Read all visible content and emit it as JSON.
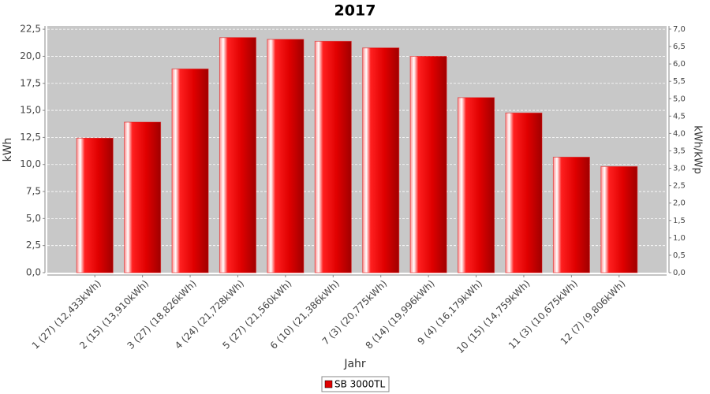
{
  "chart_data": {
    "type": "bar",
    "title": "2017",
    "x_label": "Jahr",
    "y_label": "kWh",
    "y2_label": "kWh/kWp",
    "categories": [
      "1 (27)  (12,433kWh)",
      "2 (15)  (13,910kWh)",
      "3 (27)  (18,826kWh)",
      "4 (24)  (21,728kWh)",
      "5 (27)  (21,560kWh)",
      "6 (10)  (21,386kWh)",
      "7 (3)  (20,775kWh)",
      "8 (14)  (19,996kWh)",
      "9 (4)  (16,179kWh)",
      "10 (15)  (14,759kWh)",
      "11 (3)  (10,675kWh)",
      "12 (7)  (9,806kWh)"
    ],
    "series": [
      {
        "name": "SB 3000TL",
        "color": "#e00000",
        "values": [
          12.433,
          13.91,
          18.826,
          21.728,
          21.56,
          21.386,
          20.775,
          19.996,
          16.179,
          14.759,
          10.675,
          9.806
        ]
      }
    ],
    "ylim": [
      0,
      22.8
    ],
    "yticks": [
      {
        "value": 0,
        "label": "0,0"
      },
      {
        "value": 2.5,
        "label": "2,5"
      },
      {
        "value": 5,
        "label": "5,0"
      },
      {
        "value": 7.5,
        "label": "7,5"
      },
      {
        "value": 10,
        "label": "10,0"
      },
      {
        "value": 12.5,
        "label": "12,5"
      },
      {
        "value": 15,
        "label": "15,0"
      },
      {
        "value": 17.5,
        "label": "17,5"
      },
      {
        "value": 20,
        "label": "20,0"
      },
      {
        "value": 22.5,
        "label": "22,5"
      }
    ],
    "y2lim": [
      0,
      7.09
    ],
    "y2ticks": [
      {
        "value": 0,
        "label": "0,0"
      },
      {
        "value": 0.5,
        "label": "0,5"
      },
      {
        "value": 1,
        "label": "1,0"
      },
      {
        "value": 1.5,
        "label": "1,5"
      },
      {
        "value": 2,
        "label": "2,0"
      },
      {
        "value": 2.5,
        "label": "2,5"
      },
      {
        "value": 3,
        "label": "3,0"
      },
      {
        "value": 3.5,
        "label": "3,5"
      },
      {
        "value": 4,
        "label": "4,0"
      },
      {
        "value": 4.5,
        "label": "4,5"
      },
      {
        "value": 5,
        "label": "5,0"
      },
      {
        "value": 5.5,
        "label": "5,5"
      },
      {
        "value": 6,
        "label": "6,0"
      },
      {
        "value": 6.5,
        "label": "6,5"
      },
      {
        "value": 7,
        "label": "7,0"
      }
    ],
    "grid": true
  }
}
